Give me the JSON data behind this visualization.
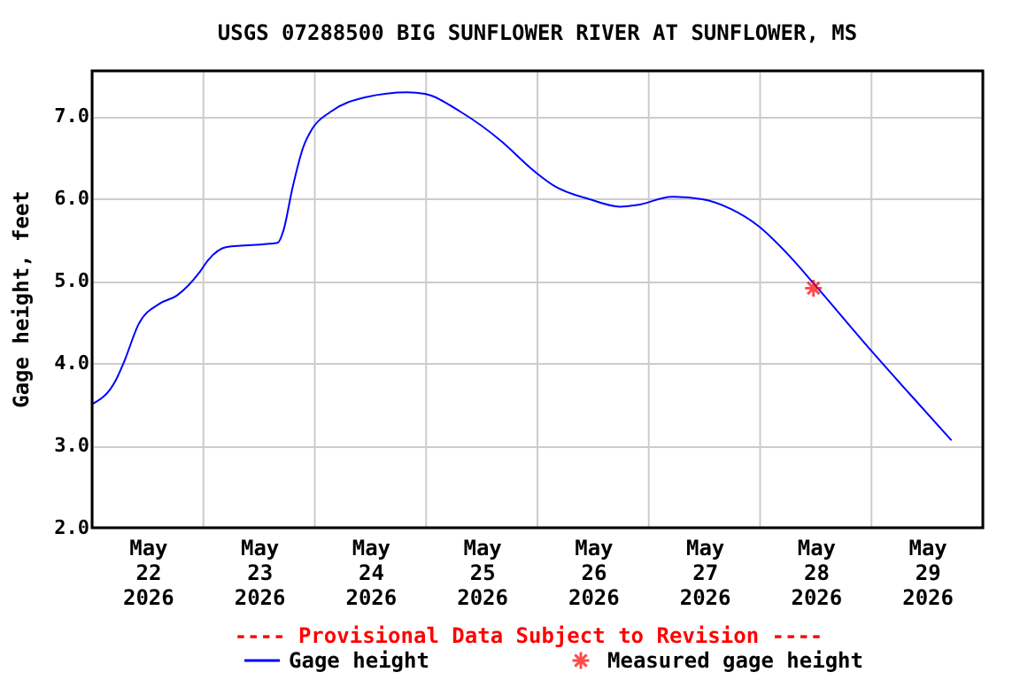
{
  "chart_data": {
    "type": "line",
    "title": "USGS 07288500 BIG SUNFLOWER RIVER AT SUNFLOWER, MS",
    "ylabel": "Gage height, feet",
    "annotations": [
      "---- Provisional Data Subject to Revision ----"
    ],
    "xlim": [
      "2026-05-22T00:00",
      "2026-05-30T00:00"
    ],
    "xticks": [
      {
        "value": "2026-05-22T12:00",
        "label": "May 22 2026"
      },
      {
        "value": "2026-05-23T00:00",
        "label": null
      },
      {
        "value": "2026-05-23T12:00",
        "label": "May 23 2026"
      },
      {
        "value": "2026-05-24T00:00",
        "label": null
      },
      {
        "value": "2026-05-24T12:00",
        "label": "May 24 2026"
      },
      {
        "value": "2026-05-25T00:00",
        "label": null
      },
      {
        "value": "2026-05-25T12:00",
        "label": "May 25 2026"
      },
      {
        "value": "2026-05-26T00:00",
        "label": null
      },
      {
        "value": "2026-05-26T12:00",
        "label": "May 26 2026"
      },
      {
        "value": "2026-05-27T00:00",
        "label": null
      },
      {
        "value": "2026-05-27T12:00",
        "label": "May 27 2026"
      },
      {
        "value": "2026-05-28T00:00",
        "label": null
      },
      {
        "value": "2026-05-28T12:00",
        "label": "May 28 2026"
      },
      {
        "value": "2026-05-29T00:00",
        "label": null
      },
      {
        "value": "2026-05-29T12:00",
        "label": "May 29 2026"
      }
    ],
    "ylim": [
      2,
      7.55
    ],
    "yticks": [
      {
        "value": 2,
        "label": "2.0"
      },
      {
        "value": 3,
        "label": "3.0"
      },
      {
        "value": 4,
        "label": "4.0"
      },
      {
        "value": 5,
        "label": "5.0"
      },
      {
        "value": 6,
        "label": "6.0"
      },
      {
        "value": 7,
        "label": "7.0"
      }
    ],
    "grid": true,
    "legend": "bottom",
    "series": [
      {
        "name": "Gage height",
        "color": "#0000ff",
        "type": "line",
        "marker": "none",
        "x": [
          "2026-05-22T00:00",
          "2026-05-22T05:00",
          "2026-05-22T07:00",
          "2026-05-22T10:00",
          "2026-05-22T14:30",
          "2026-05-22T18:15",
          "2026-05-22T23:15",
          "2026-05-23T01:00",
          "2026-05-23T05:00",
          "2026-05-23T16:00",
          "2026-05-23T17:15",
          "2026-05-23T19:10",
          "2026-05-23T21:30",
          "2026-05-23T23:30",
          "2026-05-24T03:20",
          "2026-05-24T11:00",
          "2026-05-24T20:00",
          "2026-05-24T23:45",
          "2026-05-25T07:30",
          "2026-05-25T16:20",
          "2026-05-25T22:30",
          "2026-05-26T00:00",
          "2026-05-26T03:40",
          "2026-05-26T11:15",
          "2026-05-26T17:45",
          "2026-05-26T21:30",
          "2026-05-27T05:00",
          "2026-05-27T11:30",
          "2026-05-27T17:45",
          "2026-05-27T23:30",
          "2026-05-28T06:30",
          "2026-05-28T11:30",
          "2026-05-28T23:30",
          "2026-05-29T08:00",
          "2026-05-29T17:15"
        ],
        "values": [
          3.5,
          3.78,
          4.03,
          4.47,
          4.72,
          4.82,
          5.11,
          5.25,
          5.41,
          5.46,
          5.61,
          6.12,
          6.62,
          6.85,
          7.05,
          7.23,
          7.29,
          7.27,
          7.05,
          6.69,
          6.37,
          6.3,
          6.15,
          5.99,
          5.9,
          5.92,
          6.02,
          5.99,
          5.87,
          5.67,
          5.29,
          4.97,
          4.18,
          3.64,
          3.06
        ]
      },
      {
        "name": "Measured gage height",
        "color": "#ff0000",
        "type": "scatter",
        "marker": "cross",
        "x": [
          "2026-05-28T11:30"
        ],
        "values": [
          4.91
        ]
      }
    ]
  }
}
